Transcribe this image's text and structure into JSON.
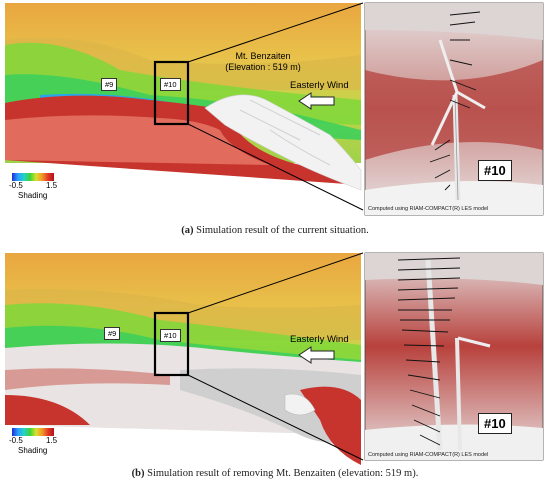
{
  "figures": [
    {
      "id": "a",
      "turbine_tags": [
        "#9",
        "#10"
      ],
      "peak_label_line1": "Mt. Benzaiten",
      "peak_label_line2": "(Elevation : 519 m)",
      "wind_label": "Easterly Wind",
      "legend": {
        "min": "-0.5",
        "max": "1.5",
        "title": "Shading"
      },
      "inset_tag": "#10",
      "computed_note": "Computed using RIAM-COMPACT(R) LES model",
      "caption_label": "(a)",
      "caption_text": " Simulation result of the current situation."
    },
    {
      "id": "b",
      "turbine_tags": [
        "#9",
        "#10"
      ],
      "wind_label": "Easterly Wind",
      "legend": {
        "min": "-0.5",
        "max": "1.5",
        "title": "Shading"
      },
      "inset_tag": "#10",
      "computed_note": "Computed using RIAM-COMPACT(R) LES model",
      "caption_label": "(b)",
      "caption_text": " Simulation result of removing Mt. Benzaiten (elevation: 519 m)."
    }
  ]
}
